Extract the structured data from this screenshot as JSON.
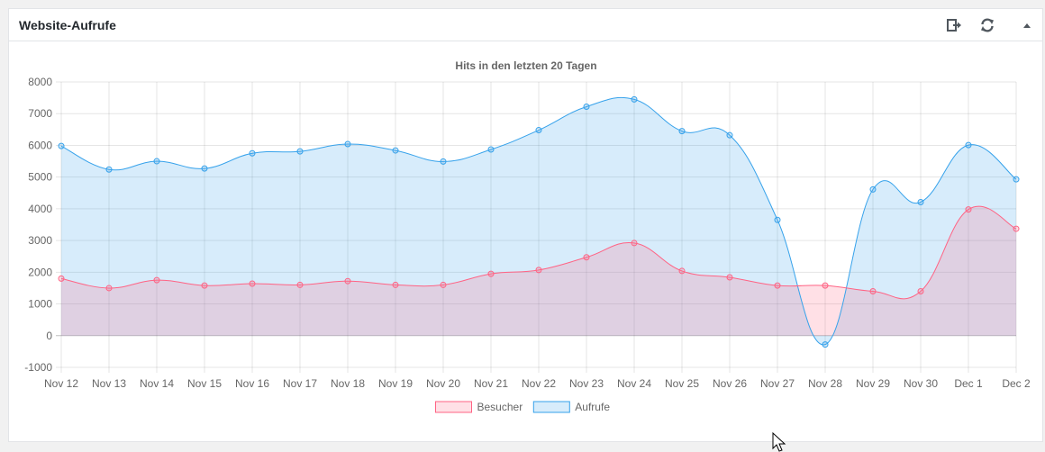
{
  "widget": {
    "title": "Website-Aufrufe",
    "icons": {
      "export": "export-icon",
      "refresh": "refresh-icon",
      "toggle": "collapse-arrow-icon"
    }
  },
  "chart_data": {
    "type": "line",
    "title": "Hits in den letzten 20 Tagen",
    "xlabel": "",
    "ylabel": "",
    "ylim": [
      -1000,
      8000
    ],
    "yticks": [
      -1000,
      0,
      1000,
      2000,
      3000,
      4000,
      5000,
      6000,
      7000,
      8000
    ],
    "grid": true,
    "legend_position": "bottom",
    "categories": [
      "Nov 12",
      "Nov 13",
      "Nov 14",
      "Nov 15",
      "Nov 16",
      "Nov 17",
      "Nov 18",
      "Nov 19",
      "Nov 20",
      "Nov 21",
      "Nov 22",
      "Nov 23",
      "Nov 24",
      "Nov 25",
      "Nov 26",
      "Nov 27",
      "Nov 28",
      "Nov 29",
      "Nov 30",
      "Dec 1",
      "Dec 2"
    ],
    "series": [
      {
        "name": "Besucher",
        "color": "#ff6384",
        "fill": "rgba(255,99,132,0.2)",
        "values": [
          1800,
          1500,
          1750,
          1580,
          1640,
          1600,
          1720,
          1600,
          1600,
          1950,
          2070,
          2470,
          2920,
          2040,
          1840,
          1580,
          1580,
          1400,
          1400,
          3980,
          3370
        ]
      },
      {
        "name": "Aufrufe",
        "color": "#36a2eb",
        "fill": "rgba(54,162,235,0.2)",
        "values": [
          5980,
          5240,
          5500,
          5270,
          5750,
          5810,
          6040,
          5840,
          5490,
          5870,
          6480,
          7220,
          7450,
          6450,
          6320,
          3650,
          -280,
          4610,
          4210,
          6010,
          4930
        ]
      }
    ]
  }
}
